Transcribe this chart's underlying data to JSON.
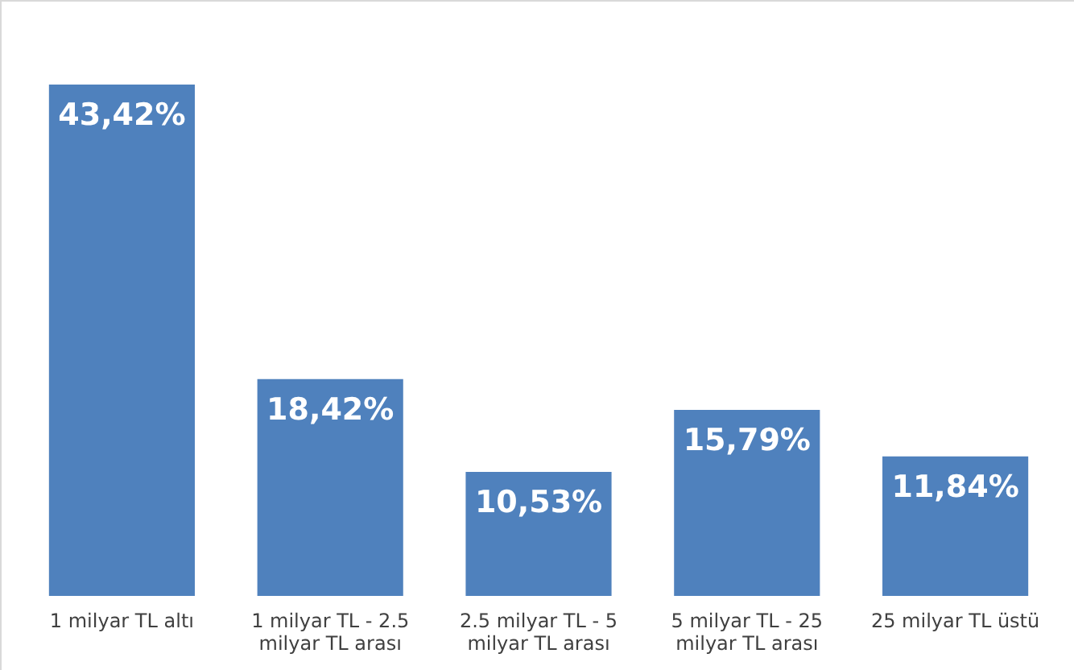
{
  "chart_data": {
    "type": "bar",
    "categories": [
      "1 milyar TL altı",
      "1 milyar TL - 2.5 milyar TL arası",
      "2.5 milyar TL  - 5 milyar TL arası",
      "5 milyar TL  - 25 milyar TL arası",
      "25 milyar TL üstü"
    ],
    "values": [
      43.42,
      18.42,
      10.53,
      15.79,
      11.84
    ],
    "value_labels": [
      "43,42%",
      "18,42%",
      "10,53%",
      "15,79%",
      "11,84%"
    ],
    "color": "#4f81bd"
  }
}
